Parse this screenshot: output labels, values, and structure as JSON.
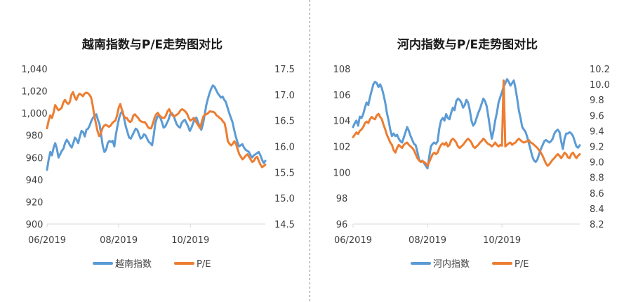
{
  "chart_data": [
    {
      "type": "line",
      "title": "越南指数与P/E走势图对比",
      "xlabel": "",
      "ylabel": "",
      "y2label": "",
      "x_ticks": [
        "06/2019",
        "08/2019",
        "10/2019"
      ],
      "y_ticks": [
        "900",
        "920",
        "940",
        "960",
        "980",
        "1,000",
        "1,020",
        "1,040"
      ],
      "y2_ticks": [
        "14.5",
        "15.0",
        "15.5",
        "16.0",
        "16.5",
        "17.0",
        "17.5"
      ],
      "ylim": [
        900,
        1040
      ],
      "y2lim": [
        14.5,
        17.5
      ],
      "x_tick_positions": [
        0,
        44,
        88
      ],
      "xlim": [
        0,
        134
      ],
      "legend_position": "bottom",
      "grid": false,
      "series": [
        {
          "name": "越南指数",
          "axis": "left",
          "color": "#5B9BD5",
          "values": [
            949,
            958,
            965,
            962,
            969,
            973,
            968,
            960,
            963,
            966,
            968,
            973,
            976,
            974,
            971,
            969,
            973,
            978,
            976,
            973,
            979,
            984,
            983,
            979,
            985,
            986,
            989,
            993,
            996,
            997,
            999,
            994,
            990,
            980,
            970,
            965,
            967,
            973,
            975,
            974,
            975,
            970,
            981,
            989,
            996,
            1000,
            1002,
            995,
            988,
            983,
            978,
            977,
            980,
            983,
            986,
            985,
            981,
            977,
            978,
            981,
            980,
            977,
            974,
            973,
            971,
            980,
            991,
            996,
            998,
            996,
            992,
            987,
            988,
            991,
            994,
            999,
            1000,
            998,
            994,
            990,
            988,
            987,
            991,
            993,
            994,
            991,
            988,
            984,
            987,
            991,
            995,
            996,
            992,
            988,
            985,
            990,
            998,
            1007,
            1013,
            1018,
            1022,
            1025,
            1024,
            1021,
            1018,
            1016,
            1014,
            1015,
            1012,
            1010,
            1005,
            1000,
            996,
            992,
            985,
            979,
            974,
            970,
            971,
            972,
            969,
            967,
            966,
            965,
            962,
            960,
            962,
            963,
            964,
            965,
            962,
            958,
            955,
            957
          ]
        },
        {
          "name": "P/E",
          "axis": "right",
          "color": "#ED7D31",
          "values": [
            16.35,
            16.5,
            16.6,
            16.55,
            16.65,
            16.8,
            16.75,
            16.7,
            16.72,
            16.75,
            16.85,
            16.9,
            16.85,
            16.82,
            16.86,
            17.0,
            17.05,
            16.95,
            16.9,
            16.98,
            17.02,
            17.0,
            16.97,
            17.02,
            17.04,
            17.03,
            17.0,
            16.95,
            16.8,
            16.6,
            16.45,
            16.3,
            16.2,
            16.25,
            16.35,
            16.4,
            16.42,
            16.4,
            16.38,
            16.4,
            16.45,
            16.48,
            16.5,
            16.6,
            16.75,
            16.82,
            16.7,
            16.6,
            16.55,
            16.55,
            16.5,
            16.47,
            16.5,
            16.6,
            16.62,
            16.58,
            16.55,
            16.5,
            16.48,
            16.47,
            16.47,
            16.43,
            16.37,
            16.35,
            16.35,
            16.45,
            16.55,
            16.62,
            16.65,
            16.6,
            16.57,
            16.55,
            16.55,
            16.6,
            16.68,
            16.72,
            16.65,
            16.6,
            16.58,
            16.6,
            16.62,
            16.65,
            16.7,
            16.72,
            16.7,
            16.67,
            16.63,
            16.55,
            16.5,
            16.52,
            16.55,
            16.5,
            16.45,
            16.4,
            16.35,
            16.48,
            16.58,
            16.62,
            16.62,
            16.65,
            16.68,
            16.67,
            16.67,
            16.65,
            16.6,
            16.58,
            16.55,
            16.53,
            16.48,
            16.45,
            16.3,
            16.1,
            16.05,
            16.02,
            16.05,
            16.1,
            16.05,
            15.95,
            15.85,
            15.8,
            15.75,
            15.78,
            15.82,
            15.85,
            15.8,
            15.75,
            15.7,
            15.72,
            15.78,
            15.8,
            15.72,
            15.65,
            15.6,
            15.62,
            15.65
          ]
        }
      ]
    },
    {
      "type": "line",
      "title": "河内指数与P/E走势图对比",
      "xlabel": "",
      "ylabel": "",
      "y2label": "",
      "x_ticks": [
        "06/2019",
        "08/2019",
        "10/2019"
      ],
      "y_ticks": [
        "96",
        "98",
        "100",
        "102",
        "104",
        "106",
        "108"
      ],
      "y2_ticks": [
        "8.2",
        "8.4",
        "8.6",
        "8.8",
        "9.0",
        "9.2",
        "9.4",
        "9.6",
        "9.8",
        "10.0",
        "10.2"
      ],
      "ylim": [
        96,
        108
      ],
      "y2lim": [
        8.2,
        10.2
      ],
      "x_tick_positions": [
        0,
        44,
        88
      ],
      "xlim": [
        0,
        134
      ],
      "legend_position": "bottom",
      "grid": false,
      "series": [
        {
          "name": "河内指数",
          "axis": "left",
          "color": "#5B9BD5",
          "values": [
            103.5,
            103.8,
            104.0,
            103.6,
            104.3,
            104.2,
            104.5,
            105.0,
            105.4,
            105.2,
            105.8,
            106.3,
            106.8,
            107.0,
            106.9,
            106.6,
            106.8,
            106.5,
            106.0,
            105.4,
            104.6,
            104.0,
            103.3,
            102.8,
            103.0,
            102.8,
            102.9,
            102.6,
            102.4,
            102.3,
            102.7,
            103.1,
            103.5,
            103.2,
            102.8,
            102.5,
            102.2,
            102.1,
            101.6,
            101.0,
            100.8,
            100.9,
            100.7,
            100.5,
            100.3,
            101.2,
            102.0,
            102.2,
            102.3,
            102.2,
            102.4,
            103.4,
            104.0,
            104.2,
            104.0,
            104.5,
            104.2,
            104.1,
            104.6,
            105.0,
            104.8,
            105.5,
            105.7,
            105.6,
            105.4,
            105.0,
            105.2,
            105.6,
            105.4,
            104.8,
            104.0,
            103.6,
            103.8,
            104.2,
            104.6,
            104.9,
            105.3,
            105.7,
            105.5,
            105.1,
            104.3,
            103.4,
            102.6,
            103.2,
            104.0,
            104.6,
            105.4,
            105.8,
            106.2,
            106.6,
            106.9,
            107.2,
            107.0,
            106.7,
            106.9,
            107.1,
            106.5,
            105.7,
            104.8,
            104.2,
            103.5,
            103.3,
            103.1,
            102.7,
            102.2,
            101.7,
            101.2,
            100.9,
            100.8,
            101.0,
            101.4,
            101.8,
            102.1,
            102.4,
            102.5,
            102.4,
            102.3,
            102.4,
            102.6,
            103.0,
            103.2,
            103.3,
            103.1,
            102.4,
            101.8,
            102.6,
            103.0,
            103.0,
            103.1,
            103.0,
            102.8,
            102.4,
            102.0,
            101.9,
            102.1
          ]
        },
        {
          "name": "P/E",
          "axis": "right",
          "color": "#ED7D31",
          "values": [
            9.32,
            9.35,
            9.38,
            9.36,
            9.4,
            9.42,
            9.45,
            9.5,
            9.52,
            9.5,
            9.55,
            9.58,
            9.56,
            9.55,
            9.6,
            9.62,
            9.58,
            9.55,
            9.48,
            9.42,
            9.35,
            9.3,
            9.25,
            9.22,
            9.15,
            9.12,
            9.18,
            9.22,
            9.2,
            9.18,
            9.22,
            9.24,
            9.25,
            9.22,
            9.2,
            9.18,
            9.15,
            9.1,
            9.05,
            9.02,
            9.0,
            9.01,
            9.0,
            8.98,
            8.95,
            9.0,
            9.05,
            9.1,
            9.12,
            9.1,
            9.12,
            9.18,
            9.22,
            9.24,
            9.22,
            9.25,
            9.2,
            9.22,
            9.28,
            9.3,
            9.28,
            9.25,
            9.2,
            9.18,
            9.2,
            9.22,
            9.25,
            9.28,
            9.3,
            9.28,
            9.25,
            9.2,
            9.18,
            9.2,
            9.22,
            9.25,
            9.27,
            9.3,
            9.28,
            9.25,
            9.23,
            9.22,
            9.2,
            9.22,
            9.25,
            9.22,
            9.2,
            9.22,
            9.21,
            10.05,
            9.2,
            9.22,
            9.24,
            9.25,
            9.22,
            9.24,
            9.25,
            9.28,
            9.3,
            9.28,
            9.26,
            9.25,
            9.26,
            9.27,
            9.28,
            9.25,
            9.24,
            9.22,
            9.2,
            9.18,
            9.15,
            9.12,
            9.08,
            9.03,
            8.98,
            8.95,
            8.97,
            9.0,
            9.03,
            9.05,
            9.08,
            9.1,
            9.08,
            9.05,
            9.08,
            9.12,
            9.1,
            9.06,
            9.05,
            9.1,
            9.12,
            9.08,
            9.05,
            9.08,
            9.1
          ]
        }
      ]
    }
  ]
}
